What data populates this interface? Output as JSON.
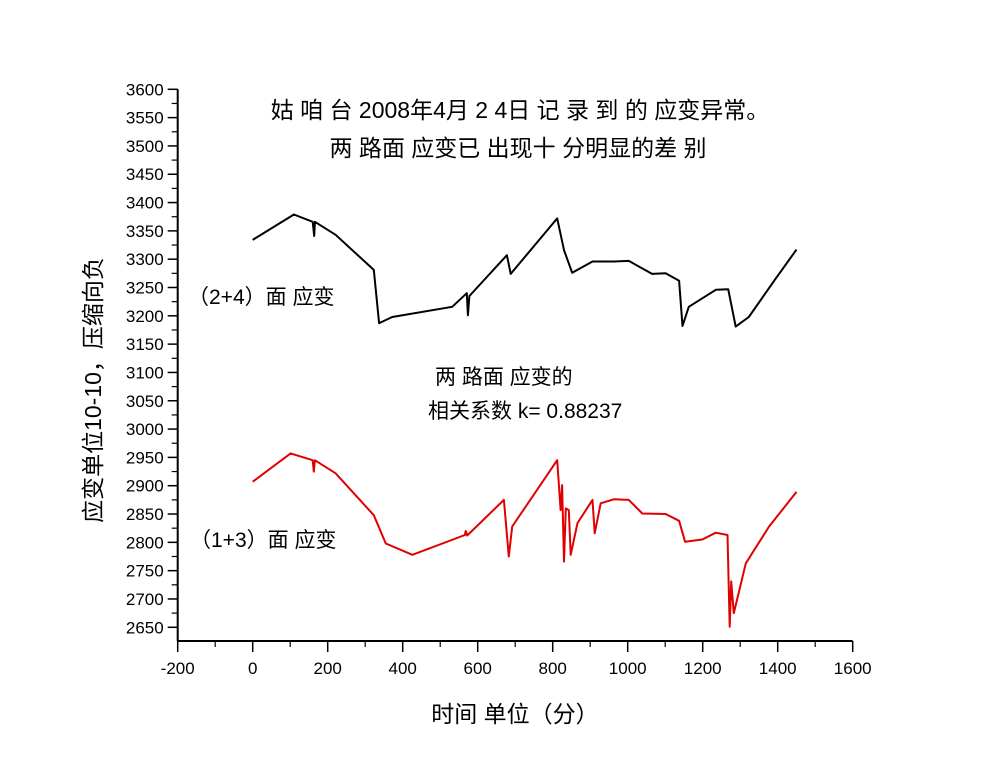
{
  "chart_data": {
    "type": "line",
    "title": [
      "姑 咱 台 2008年4月 2 4日 记 录 到 的 应变异常。",
      "两 路面 应变已 出现十 分明显的差 别"
    ],
    "xlabel": "时间 单位（分）",
    "ylabel": "应变单位10-10，压缩向负",
    "xlim": [
      -200,
      1600
    ],
    "ylim": [
      2626,
      3600
    ],
    "x_ticks": [
      -200,
      0,
      200,
      400,
      600,
      800,
      1000,
      1200,
      1400,
      1600
    ],
    "y_ticks": [
      2650,
      2700,
      2750,
      2800,
      2850,
      2900,
      2950,
      3000,
      3050,
      3100,
      3150,
      3200,
      3250,
      3300,
      3350,
      3400,
      3450,
      3500,
      3550,
      3600
    ],
    "grid": false,
    "series": [
      {
        "name": "（2+4）面 应变",
        "color": "#000000",
        "x": [
          0,
          110,
          160,
          164,
          166,
          221,
          323,
          337,
          372,
          532,
          571,
          574,
          578,
          678,
          688,
          812,
          830,
          852,
          906,
          963,
          1003,
          1065,
          1101,
          1137,
          1146,
          1163,
          1235,
          1268,
          1288,
          1323,
          1395,
          1450
        ],
        "y": [
          3334,
          3379,
          3366,
          3341,
          3366,
          3343,
          3281,
          3187,
          3198,
          3216,
          3240,
          3201,
          3235,
          3307,
          3274,
          3372,
          3316,
          3276,
          3296,
          3296,
          3297,
          3274,
          3275,
          3262,
          3182,
          3216,
          3246,
          3247,
          3181,
          3198,
          3266,
          3317
        ]
      },
      {
        "name": "（1+3）面 应变",
        "color": "#e00000",
        "x": [
          0,
          101,
          160,
          163,
          166,
          221,
          323,
          355,
          426,
          566,
          568,
          572,
          670,
          683,
          692,
          812,
          821,
          825,
          830,
          835,
          843,
          848,
          866,
          906,
          912,
          928,
          963,
          1003,
          1039,
          1101,
          1137,
          1153,
          1199,
          1235,
          1266,
          1272,
          1276,
          1283,
          1315,
          1377,
          1450
        ],
        "y": [
          2907,
          2957,
          2945,
          2925,
          2945,
          2922,
          2848,
          2798,
          2778,
          2813,
          2820,
          2812,
          2875,
          2775,
          2828,
          2945,
          2857,
          2901,
          2766,
          2860,
          2857,
          2778,
          2834,
          2875,
          2816,
          2869,
          2876,
          2875,
          2851,
          2850,
          2838,
          2801,
          2805,
          2817,
          2813,
          2651,
          2731,
          2675,
          2763,
          2828,
          2889
        ]
      }
    ],
    "annotations": {
      "series1_label": "（2+4）面 应变",
      "series2_label": "（1+3）面 应变",
      "corr_line1": "两 路面 应变的",
      "corr_line2": "相关系数 k= 0.88237"
    }
  }
}
